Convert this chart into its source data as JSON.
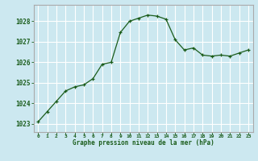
{
  "x": [
    0,
    1,
    2,
    3,
    4,
    5,
    6,
    7,
    8,
    9,
    10,
    11,
    12,
    13,
    14,
    15,
    16,
    17,
    18,
    19,
    20,
    21,
    22,
    23
  ],
  "y": [
    1023.1,
    1023.6,
    1024.1,
    1024.6,
    1024.8,
    1024.9,
    1025.2,
    1025.9,
    1026.0,
    1027.45,
    1028.0,
    1028.15,
    1028.3,
    1028.25,
    1028.1,
    1027.1,
    1026.6,
    1026.7,
    1026.35,
    1026.3,
    1026.35,
    1026.3,
    1026.45,
    1026.6
  ],
  "line_color": "#1a5c1a",
  "marker": "+",
  "marker_size": 3,
  "bg_color": "#cce8f0",
  "grid_color": "#ffffff",
  "title": "Graphe pression niveau de la mer (hPa)",
  "ylabel_ticks": [
    1023,
    1024,
    1025,
    1026,
    1027,
    1028
  ],
  "xlabel_ticks": [
    0,
    1,
    2,
    3,
    4,
    5,
    6,
    7,
    8,
    9,
    10,
    11,
    12,
    13,
    14,
    15,
    16,
    17,
    18,
    19,
    20,
    21,
    22,
    23
  ],
  "xlabel_labels": [
    "0",
    "1",
    "2",
    "3",
    "4",
    "5",
    "6",
    "7",
    "8",
    "9",
    "10",
    "11",
    "12",
    "13",
    "14",
    "15",
    "16",
    "17",
    "18",
    "19",
    "20",
    "21",
    "22",
    "23"
  ],
  "ylim": [
    1022.6,
    1028.8
  ],
  "xlim": [
    -0.5,
    23.5
  ],
  "border_color": "#aaaaaa"
}
